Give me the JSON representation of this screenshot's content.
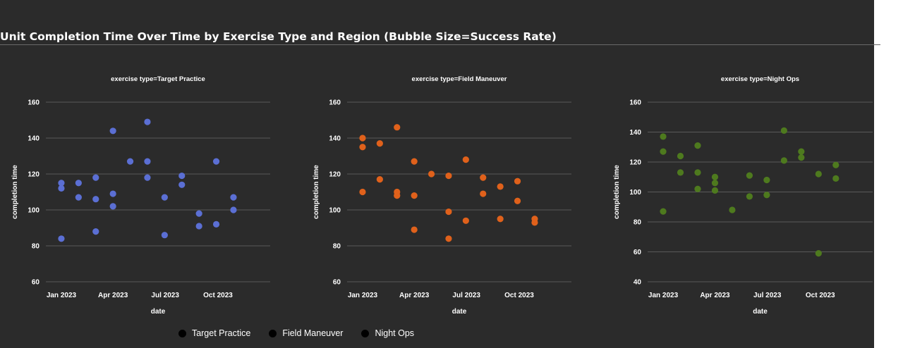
{
  "title": "Unit Completion Time Over Time by Exercise Type and Region (Bubble Size=Success Rate)",
  "legend": [
    {
      "label": "Target Practice"
    },
    {
      "label": "Field Maneuver"
    },
    {
      "label": "Night Ops"
    }
  ],
  "colors": {
    "background": "#2b2b2b",
    "gridline": "#5a5a5a",
    "text": "#ffffff",
    "Target Practice": "#5b6fd4",
    "Field Maneuver": "#e0611b",
    "Night Ops": "#4e7a1e"
  },
  "chart_data": [
    {
      "type": "scatter",
      "title": "exercise type=Target Practice",
      "xlabel": "date",
      "ylabel": "completion time",
      "x_tick_labels": [
        "Jan 2023",
        "Apr 2023",
        "Jul 2023",
        "Oct 2023"
      ],
      "x_tick_dates": [
        "2023-01-01",
        "2023-04-01",
        "2023-07-01",
        "2023-10-01"
      ],
      "xlim": [
        "2022-12-05",
        "2023-12-31"
      ],
      "ylim": [
        60,
        160
      ],
      "y_ticks": [
        60,
        80,
        100,
        120,
        140,
        160
      ],
      "grid": true,
      "series": [
        {
          "name": "Target Practice",
          "points": [
            {
              "x": "2023-01-01",
              "y": 84
            },
            {
              "x": "2023-01-01",
              "y": 112
            },
            {
              "x": "2023-01-01",
              "y": 115
            },
            {
              "x": "2023-01-31",
              "y": 107
            },
            {
              "x": "2023-01-31",
              "y": 115
            },
            {
              "x": "2023-03-02",
              "y": 88
            },
            {
              "x": "2023-03-02",
              "y": 106
            },
            {
              "x": "2023-03-02",
              "y": 118
            },
            {
              "x": "2023-04-01",
              "y": 102
            },
            {
              "x": "2023-04-01",
              "y": 109
            },
            {
              "x": "2023-04-01",
              "y": 144
            },
            {
              "x": "2023-05-01",
              "y": 127
            },
            {
              "x": "2023-05-31",
              "y": 118
            },
            {
              "x": "2023-05-31",
              "y": 127
            },
            {
              "x": "2023-05-31",
              "y": 149
            },
            {
              "x": "2023-06-30",
              "y": 86
            },
            {
              "x": "2023-06-30",
              "y": 107
            },
            {
              "x": "2023-07-30",
              "y": 114
            },
            {
              "x": "2023-07-30",
              "y": 119
            },
            {
              "x": "2023-08-29",
              "y": 91
            },
            {
              "x": "2023-08-29",
              "y": 98
            },
            {
              "x": "2023-09-28",
              "y": 92
            },
            {
              "x": "2023-09-28",
              "y": 127
            },
            {
              "x": "2023-10-28",
              "y": 100
            },
            {
              "x": "2023-10-28",
              "y": 107
            }
          ]
        }
      ]
    },
    {
      "type": "scatter",
      "title": "exercise type=Field Maneuver",
      "xlabel": "date",
      "ylabel": "completion time",
      "x_tick_labels": [
        "Jan 2023",
        "Apr 2023",
        "Jul 2023",
        "Oct 2023"
      ],
      "x_tick_dates": [
        "2023-01-01",
        "2023-04-01",
        "2023-07-01",
        "2023-10-01"
      ],
      "xlim": [
        "2022-12-05",
        "2023-12-31"
      ],
      "ylim": [
        60,
        160
      ],
      "y_ticks": [
        60,
        80,
        100,
        120,
        140,
        160
      ],
      "grid": true,
      "series": [
        {
          "name": "Field Maneuver",
          "points": [
            {
              "x": "2023-01-01",
              "y": 110
            },
            {
              "x": "2023-01-01",
              "y": 135
            },
            {
              "x": "2023-01-01",
              "y": 140
            },
            {
              "x": "2023-01-31",
              "y": 117
            },
            {
              "x": "2023-01-31",
              "y": 137
            },
            {
              "x": "2023-03-02",
              "y": 108
            },
            {
              "x": "2023-03-02",
              "y": 110
            },
            {
              "x": "2023-03-02",
              "y": 146
            },
            {
              "x": "2023-04-01",
              "y": 89
            },
            {
              "x": "2023-04-01",
              "y": 108
            },
            {
              "x": "2023-04-01",
              "y": 127
            },
            {
              "x": "2023-05-01",
              "y": 120
            },
            {
              "x": "2023-05-31",
              "y": 84
            },
            {
              "x": "2023-05-31",
              "y": 99
            },
            {
              "x": "2023-05-31",
              "y": 119
            },
            {
              "x": "2023-06-30",
              "y": 94
            },
            {
              "x": "2023-06-30",
              "y": 128
            },
            {
              "x": "2023-07-30",
              "y": 109
            },
            {
              "x": "2023-07-30",
              "y": 118
            },
            {
              "x": "2023-08-29",
              "y": 95
            },
            {
              "x": "2023-08-29",
              "y": 113
            },
            {
              "x": "2023-09-28",
              "y": 105
            },
            {
              "x": "2023-09-28",
              "y": 116
            },
            {
              "x": "2023-10-28",
              "y": 93
            },
            {
              "x": "2023-10-28",
              "y": 95
            }
          ]
        }
      ]
    },
    {
      "type": "scatter",
      "title": "exercise type=Night Ops",
      "xlabel": "date",
      "ylabel": "completion time",
      "x_tick_labels": [
        "Jan 2023",
        "Apr 2023",
        "Jul 2023",
        "Oct 2023"
      ],
      "x_tick_dates": [
        "2023-01-01",
        "2023-04-01",
        "2023-07-01",
        "2023-10-01"
      ],
      "xlim": [
        "2022-12-05",
        "2023-12-31"
      ],
      "ylim": [
        40,
        160
      ],
      "y_ticks": [
        40,
        60,
        80,
        100,
        120,
        140,
        160
      ],
      "grid": true,
      "series": [
        {
          "name": "Night Ops",
          "points": [
            {
              "x": "2023-01-01",
              "y": 87
            },
            {
              "x": "2023-01-01",
              "y": 127
            },
            {
              "x": "2023-01-01",
              "y": 137
            },
            {
              "x": "2023-01-31",
              "y": 113
            },
            {
              "x": "2023-01-31",
              "y": 124
            },
            {
              "x": "2023-03-02",
              "y": 102
            },
            {
              "x": "2023-03-02",
              "y": 113
            },
            {
              "x": "2023-03-02",
              "y": 131
            },
            {
              "x": "2023-04-01",
              "y": 101
            },
            {
              "x": "2023-04-01",
              "y": 106
            },
            {
              "x": "2023-04-01",
              "y": 110
            },
            {
              "x": "2023-05-01",
              "y": 88
            },
            {
              "x": "2023-05-31",
              "y": 97
            },
            {
              "x": "2023-05-31",
              "y": 111
            },
            {
              "x": "2023-06-30",
              "y": 98
            },
            {
              "x": "2023-06-30",
              "y": 108
            },
            {
              "x": "2023-07-30",
              "y": 121
            },
            {
              "x": "2023-07-30",
              "y": 141
            },
            {
              "x": "2023-08-29",
              "y": 123
            },
            {
              "x": "2023-08-29",
              "y": 127
            },
            {
              "x": "2023-09-28",
              "y": 59
            },
            {
              "x": "2023-09-28",
              "y": 112
            },
            {
              "x": "2023-10-28",
              "y": 109
            },
            {
              "x": "2023-10-28",
              "y": 118
            }
          ]
        }
      ]
    }
  ]
}
